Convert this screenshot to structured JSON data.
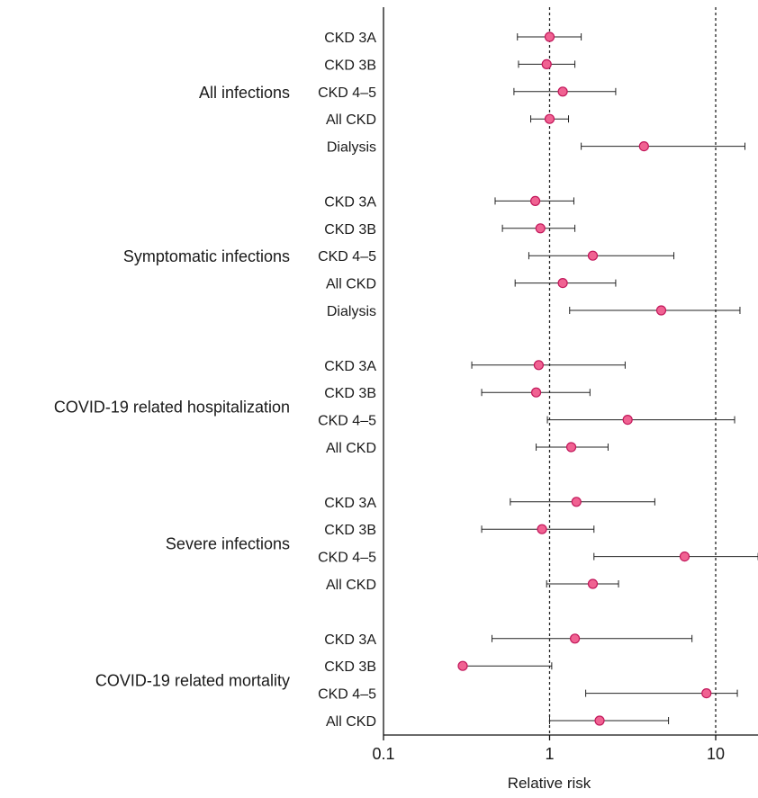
{
  "chart_data": {
    "type": "forest",
    "xscale": "log",
    "xlim": [
      0.1,
      18
    ],
    "xticks": [
      0.1,
      1,
      10
    ],
    "xtick_labels": [
      "0.1",
      "1",
      "10"
    ],
    "xlabel": "Relative risk",
    "reference_lines": [
      1,
      10
    ],
    "marker_color": "#f06292",
    "marker_edge": "#c2185b",
    "groups": [
      {
        "name": "All infections",
        "rows": [
          {
            "label": "CKD 3A",
            "estimate": 1.0,
            "lower": 0.64,
            "upper": 1.55
          },
          {
            "label": "CKD 3B",
            "estimate": 0.96,
            "lower": 0.65,
            "upper": 1.42
          },
          {
            "label": "CKD 4–5",
            "estimate": 1.2,
            "lower": 0.61,
            "upper": 2.5
          },
          {
            "label": "All CKD",
            "estimate": 1.0,
            "lower": 0.77,
            "upper": 1.3
          },
          {
            "label": "Dialysis",
            "estimate": 3.7,
            "lower": 1.55,
            "upper": 15.0
          }
        ]
      },
      {
        "name": "Symptomatic infections",
        "rows": [
          {
            "label": "CKD 3A",
            "estimate": 0.82,
            "lower": 0.47,
            "upper": 1.4
          },
          {
            "label": "CKD 3B",
            "estimate": 0.88,
            "lower": 0.52,
            "upper": 1.42
          },
          {
            "label": "CKD 4–5",
            "estimate": 1.82,
            "lower": 0.75,
            "upper": 5.6
          },
          {
            "label": "All CKD",
            "estimate": 1.2,
            "lower": 0.62,
            "upper": 2.5
          },
          {
            "label": "Dialysis",
            "estimate": 4.7,
            "lower": 1.32,
            "upper": 14.0
          }
        ]
      },
      {
        "name": "COVID-19 related hospitalization",
        "rows": [
          {
            "label": "CKD 3A",
            "estimate": 0.86,
            "lower": 0.34,
            "upper": 2.85
          },
          {
            "label": "CKD 3B",
            "estimate": 0.83,
            "lower": 0.39,
            "upper": 1.75
          },
          {
            "label": "CKD 4–5",
            "estimate": 2.95,
            "lower": 0.97,
            "upper": 13.0
          },
          {
            "label": "All CKD",
            "estimate": 1.35,
            "lower": 0.83,
            "upper": 2.25
          }
        ]
      },
      {
        "name": "Severe infections",
        "rows": [
          {
            "label": "CKD 3A",
            "estimate": 1.45,
            "lower": 0.58,
            "upper": 4.3
          },
          {
            "label": "CKD 3B",
            "estimate": 0.9,
            "lower": 0.39,
            "upper": 1.85
          },
          {
            "label": "CKD 4–5",
            "estimate": 6.5,
            "lower": 1.85,
            "upper": 18.0
          },
          {
            "label": "All CKD",
            "estimate": 1.82,
            "lower": 0.96,
            "upper": 2.6
          }
        ]
      },
      {
        "name": "COVID-19 related mortality",
        "rows": [
          {
            "label": "CKD 3A",
            "estimate": 1.42,
            "lower": 0.45,
            "upper": 7.2
          },
          {
            "label": "CKD 3B",
            "estimate": 0.3,
            "lower": 0.3,
            "upper": 1.03
          },
          {
            "label": "CKD 4–5",
            "estimate": 8.8,
            "lower": 1.65,
            "upper": 13.5
          },
          {
            "label": "All CKD",
            "estimate": 2.0,
            "lower": 1.0,
            "upper": 5.2
          }
        ]
      }
    ]
  }
}
